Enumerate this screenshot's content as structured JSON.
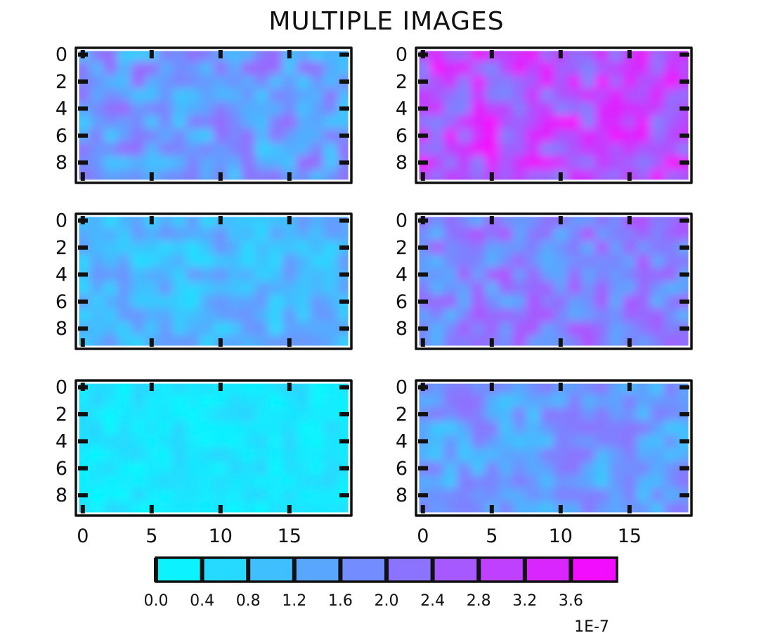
{
  "figure": {
    "title": "MULTIPLE IMAGES"
  },
  "chart_data": {
    "type": "heatmap",
    "title": "MULTIPLE IMAGES",
    "grid": false,
    "image_shape": [
      10,
      20
    ],
    "x_ticks": [
      "0",
      "5",
      "10",
      "15"
    ],
    "y_ticks": [
      "0",
      "2",
      "4",
      "6",
      "8"
    ],
    "colormap": {
      "name": "cool",
      "low": "#00ffff",
      "high": "#ff00ff"
    },
    "value_range": [
      0.0,
      4e-07
    ],
    "colorbar": {
      "orientation": "horizontal",
      "position": "bottom",
      "ticks": [
        "0.0",
        "0.4",
        "0.8",
        "1.2",
        "1.6",
        "2.0",
        "2.4",
        "2.8",
        "3.2",
        "3.6"
      ],
      "offset_label": "1E-7",
      "boundaries": [
        0.0,
        0.4,
        0.8,
        1.2,
        1.6,
        2.0,
        2.4,
        2.8,
        3.2,
        3.6,
        4.0
      ]
    },
    "panels": [
      {
        "row": 0,
        "col": 0,
        "mean_level": 0.4,
        "spread": 0.22
      },
      {
        "row": 0,
        "col": 1,
        "mean_level": 0.72,
        "spread": 0.26
      },
      {
        "row": 1,
        "col": 0,
        "mean_level": 0.28,
        "spread": 0.16
      },
      {
        "row": 1,
        "col": 1,
        "mean_level": 0.5,
        "spread": 0.22
      },
      {
        "row": 2,
        "col": 0,
        "mean_level": 0.1,
        "spread": 0.08
      },
      {
        "row": 2,
        "col": 1,
        "mean_level": 0.38,
        "spread": 0.18
      }
    ]
  }
}
